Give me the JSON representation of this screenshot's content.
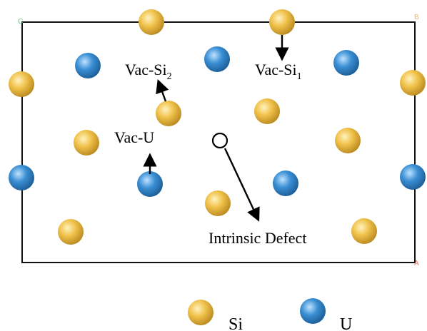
{
  "diagram": {
    "corner_labels": {
      "top_left": "C",
      "top_right": "B",
      "bottom_right": "A"
    },
    "colors": {
      "si": "#e8b43a",
      "u": "#2f86c9",
      "cell": "#111111",
      "corner_left": "#6cc27a",
      "corner_right": "#f0b86a",
      "corner_a": "#e87a7a"
    },
    "labels": {
      "vac_si2": {
        "base": "Vac-Si",
        "sub": "2"
      },
      "vac_si1": {
        "base": "Vac-Si",
        "sub": "1"
      },
      "vac_u": "Vac-U",
      "intrinsic_defect": "Intrinsic Defect"
    },
    "legend": {
      "si": "Si",
      "u": "U"
    }
  }
}
